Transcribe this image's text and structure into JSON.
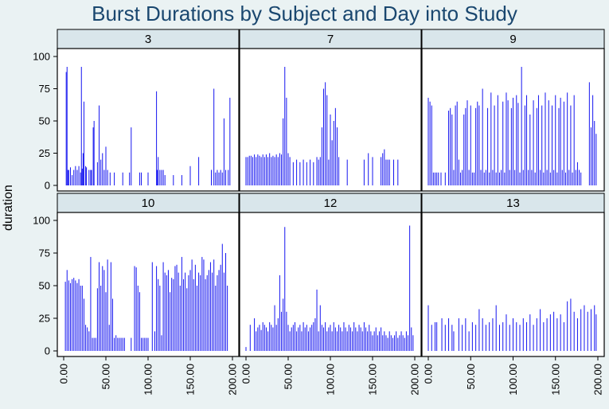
{
  "chart_data": {
    "type": "bar",
    "title": "Burst Durations by Subject and Day into Study",
    "ylabel": "duration",
    "xlabel": "",
    "xlim": [
      0,
      200
    ],
    "ylim": [
      0,
      100
    ],
    "yticks": [
      "0",
      "25",
      "50",
      "75",
      "100"
    ],
    "xticks": [
      "0.00",
      "50.00",
      "100.00",
      "150.00",
      "200.00"
    ],
    "grid": false,
    "facets": [
      {
        "label": "3",
        "days": [
          3,
          4,
          5,
          6,
          8,
          10,
          12,
          14,
          16,
          18,
          20,
          21,
          22,
          23,
          24,
          26,
          27,
          30,
          32,
          33,
          35,
          36,
          40,
          42,
          44,
          46,
          48,
          50,
          52,
          55,
          60,
          70,
          78,
          80,
          90,
          92,
          100,
          110,
          111,
          112,
          114,
          116,
          118,
          120,
          130,
          140,
          150,
          160,
          175,
          178,
          180,
          182,
          184,
          186,
          188,
          190,
          192,
          195,
          197
        ],
        "values": [
          88,
          92,
          12,
          12,
          14,
          8,
          12,
          15,
          12,
          15,
          10,
          92,
          13,
          25,
          65,
          15,
          14,
          12,
          12,
          12,
          45,
          50,
          18,
          62,
          20,
          25,
          12,
          30,
          12,
          10,
          10,
          10,
          10,
          45,
          10,
          10,
          10,
          73,
          12,
          22,
          12,
          12,
          12,
          8,
          8,
          8,
          15,
          22,
          12,
          75,
          10,
          12,
          10,
          12,
          10,
          52,
          12,
          12,
          68
        ]
      },
      {
        "label": "7",
        "days": [
          0,
          2,
          4,
          6,
          8,
          10,
          12,
          14,
          16,
          18,
          20,
          22,
          24,
          26,
          28,
          30,
          32,
          34,
          36,
          38,
          40,
          42,
          44,
          46,
          48,
          50,
          52,
          56,
          60,
          64,
          68,
          72,
          76,
          80,
          84,
          86,
          88,
          90,
          92,
          94,
          96,
          98,
          100,
          102,
          104,
          106,
          108,
          110,
          120,
          140,
          145,
          150,
          160,
          162,
          164,
          166,
          168,
          170,
          175,
          180
        ],
        "values": [
          22,
          22,
          23,
          23,
          22,
          24,
          22,
          24,
          23,
          22,
          24,
          22,
          24,
          22,
          25,
          22,
          23,
          22,
          24,
          22,
          25,
          24,
          52,
          92,
          68,
          25,
          22,
          18,
          20,
          18,
          20,
          18,
          20,
          18,
          22,
          20,
          22,
          45,
          75,
          80,
          70,
          20,
          55,
          35,
          50,
          60,
          45,
          22,
          20,
          20,
          25,
          22,
          22,
          25,
          28,
          20,
          20,
          20,
          20,
          20
        ]
      },
      {
        "label": "9",
        "days": [
          0,
          2,
          4,
          6,
          8,
          10,
          12,
          15,
          20,
          24,
          26,
          28,
          30,
          32,
          34,
          36,
          38,
          40,
          42,
          44,
          46,
          48,
          50,
          52,
          54,
          56,
          58,
          60,
          62,
          64,
          66,
          68,
          70,
          72,
          74,
          76,
          78,
          80,
          82,
          84,
          86,
          88,
          90,
          92,
          94,
          96,
          98,
          100,
          102,
          104,
          106,
          108,
          110,
          112,
          114,
          116,
          118,
          120,
          122,
          124,
          126,
          128,
          130,
          132,
          134,
          136,
          138,
          140,
          142,
          144,
          146,
          148,
          150,
          152,
          154,
          156,
          158,
          160,
          162,
          164,
          166,
          168,
          170,
          172,
          174,
          176,
          178,
          180,
          190,
          192,
          194,
          196,
          198
        ],
        "values": [
          68,
          65,
          62,
          10,
          10,
          10,
          10,
          10,
          10,
          58,
          60,
          55,
          12,
          62,
          65,
          20,
          10,
          12,
          55,
          60,
          66,
          12,
          62,
          10,
          10,
          60,
          65,
          62,
          12,
          75,
          10,
          12,
          60,
          10,
          72,
          12,
          62,
          10,
          70,
          10,
          12,
          65,
          10,
          72,
          66,
          12,
          60,
          68,
          12,
          70,
          64,
          10,
          92,
          12,
          62,
          70,
          12,
          55,
          12,
          66,
          10,
          60,
          70,
          12,
          62,
          10,
          72,
          12,
          66,
          10,
          62,
          12,
          70,
          10,
          60,
          68,
          12,
          65,
          10,
          72,
          12,
          62,
          10,
          70,
          12,
          18,
          12,
          10,
          80,
          45,
          70,
          50,
          40
        ]
      },
      {
        "label": "10",
        "days": [
          2,
          4,
          6,
          8,
          10,
          12,
          14,
          16,
          18,
          20,
          22,
          24,
          26,
          28,
          30,
          32,
          34,
          36,
          38,
          40,
          42,
          44,
          46,
          48,
          50,
          52,
          54,
          56,
          58,
          60,
          62,
          64,
          66,
          68,
          70,
          72,
          80,
          84,
          86,
          88,
          90,
          92,
          94,
          96,
          98,
          100,
          105,
          108,
          110,
          112,
          114,
          116,
          118,
          120,
          122,
          124,
          126,
          128,
          130,
          132,
          134,
          136,
          138,
          140,
          142,
          144,
          146,
          148,
          150,
          152,
          154,
          156,
          158,
          160,
          162,
          164,
          166,
          168,
          170,
          172,
          174,
          176,
          178,
          180,
          182,
          184,
          186,
          188,
          190,
          192,
          194
        ],
        "values": [
          53,
          62,
          54,
          52,
          55,
          56,
          54,
          52,
          55,
          50,
          50,
          40,
          20,
          18,
          15,
          72,
          10,
          10,
          10,
          48,
          68,
          50,
          65,
          62,
          45,
          70,
          20,
          68,
          40,
          10,
          12,
          10,
          10,
          10,
          10,
          10,
          10,
          65,
          64,
          50,
          45,
          10,
          10,
          10,
          10,
          10,
          68,
          15,
          65,
          55,
          50,
          12,
          68,
          60,
          58,
          62,
          45,
          56,
          55,
          65,
          66,
          60,
          50,
          72,
          55,
          60,
          48,
          58,
          62,
          70,
          55,
          66,
          50,
          60,
          58,
          72,
          70,
          55,
          58,
          62,
          68,
          60,
          70,
          50,
          58,
          62,
          66,
          82,
          60,
          75,
          50
        ]
      },
      {
        "label": "12",
        "days": [
          0,
          5,
          10,
          12,
          14,
          16,
          18,
          20,
          22,
          24,
          26,
          28,
          30,
          32,
          34,
          36,
          38,
          40,
          42,
          44,
          46,
          48,
          50,
          52,
          54,
          56,
          58,
          60,
          62,
          64,
          66,
          68,
          70,
          72,
          74,
          76,
          78,
          80,
          82,
          84,
          86,
          88,
          90,
          92,
          94,
          96,
          98,
          100,
          102,
          104,
          106,
          108,
          110,
          112,
          114,
          116,
          118,
          120,
          122,
          124,
          126,
          128,
          130,
          132,
          134,
          136,
          138,
          140,
          142,
          144,
          146,
          148,
          150,
          152,
          154,
          156,
          158,
          160,
          162,
          164,
          166,
          168,
          170,
          172,
          174,
          176,
          178,
          180,
          182,
          184,
          186,
          188,
          190,
          192,
          194,
          196,
          198
        ],
        "values": [
          3,
          20,
          25,
          15,
          18,
          20,
          16,
          22,
          20,
          18,
          15,
          22,
          20,
          18,
          35,
          20,
          25,
          58,
          30,
          40,
          95,
          30,
          20,
          15,
          18,
          20,
          22,
          15,
          18,
          20,
          15,
          22,
          18,
          20,
          15,
          18,
          20,
          22,
          25,
          47,
          15,
          35,
          20,
          18,
          22,
          15,
          18,
          20,
          15,
          22,
          18,
          15,
          20,
          18,
          15,
          22,
          18,
          15,
          20,
          18,
          15,
          22,
          18,
          15,
          20,
          18,
          15,
          22,
          18,
          15,
          20,
          15,
          12,
          15,
          18,
          12,
          15,
          18,
          12,
          15,
          12,
          10,
          15,
          12,
          10,
          12,
          15,
          10,
          12,
          15,
          12,
          10,
          15,
          12,
          96,
          18,
          12
        ]
      },
      {
        "label": "13",
        "days": [
          0,
          4,
          8,
          10,
          16,
          20,
          24,
          28,
          30,
          36,
          40,
          44,
          48,
          52,
          56,
          60,
          64,
          68,
          72,
          76,
          80,
          84,
          88,
          92,
          96,
          100,
          104,
          108,
          112,
          116,
          120,
          124,
          128,
          132,
          136,
          140,
          144,
          148,
          152,
          156,
          160,
          164,
          168,
          172,
          176,
          180,
          184,
          188,
          192,
          196,
          198
        ],
        "values": [
          35,
          20,
          22,
          22,
          25,
          20,
          25,
          20,
          15,
          25,
          20,
          25,
          15,
          22,
          20,
          32,
          25,
          20,
          22,
          25,
          35,
          20,
          22,
          28,
          20,
          25,
          22,
          20,
          25,
          22,
          28,
          20,
          25,
          32,
          22,
          25,
          28,
          30,
          25,
          28,
          22,
          38,
          40,
          30,
          25,
          32,
          35,
          30,
          32,
          35,
          28
        ]
      }
    ]
  }
}
